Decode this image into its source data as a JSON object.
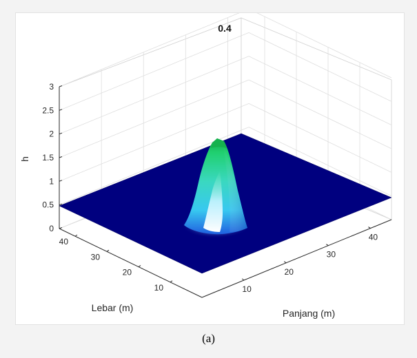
{
  "chart_data": {
    "type": "surface",
    "title": "0.4",
    "xlabel": "Panjang (m)",
    "ylabel": "Lebar (m)",
    "zlabel": "h",
    "xlim": [
      0,
      45
    ],
    "ylim": [
      0,
      45
    ],
    "zlim": [
      0,
      3
    ],
    "xticks": [
      "10",
      "20",
      "30",
      "40"
    ],
    "yticks": [
      "10",
      "20",
      "30",
      "40"
    ],
    "zticks": [
      "0",
      "0.5",
      "1",
      "1.5",
      "2",
      "2.5",
      "3"
    ],
    "base_level": 0.5,
    "peak": {
      "x": 22.5,
      "y": 22.5,
      "h": 1.9
    },
    "grid": true,
    "colormap": [
      "#00007f",
      "#1060d8",
      "#40d0f0",
      "#f0ffff",
      "#20e080",
      "#17b850"
    ]
  },
  "caption": "(a)"
}
